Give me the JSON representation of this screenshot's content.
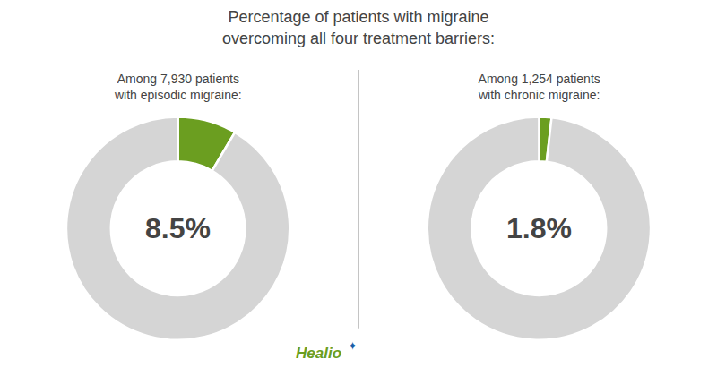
{
  "title": "Percentage of patients with migraine\novercoming all four treatment barriers:",
  "annotations": [
    {
      "text": "Healio",
      "color": "#6b9e20"
    },
    {
      "text": "✦",
      "color": "#1a5fa8"
    }
  ],
  "chart_data": [
    {
      "type": "pie",
      "title": "Among 7,930 patients\nwith episodic migraine:",
      "values": [
        8.5,
        91.5
      ],
      "value_labels": [
        "8.5%",
        null
      ],
      "colors": [
        "#6b9e20",
        "#d5d5d5"
      ]
    },
    {
      "type": "pie",
      "title": "Among 1,254 patients\nwith chronic migraine:",
      "values": [
        1.8,
        98.2
      ],
      "value_labels": [
        "1.8%",
        null
      ],
      "colors": [
        "#6b9e20",
        "#d5d5d5"
      ]
    }
  ]
}
